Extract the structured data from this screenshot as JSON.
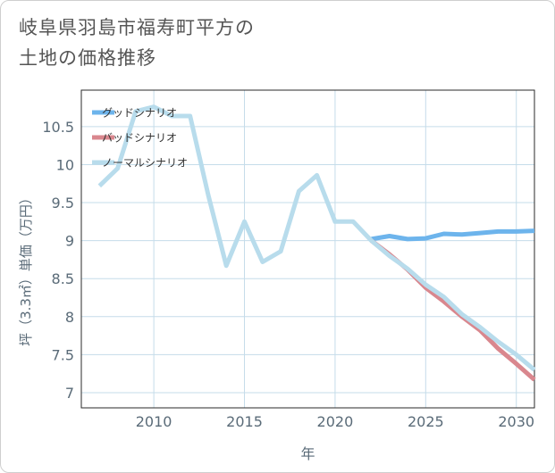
{
  "title_lines": [
    "岐阜県羽島市福寿町平方の",
    "土地の価格推移"
  ],
  "chart_data": {
    "type": "line",
    "xlabel": "年",
    "ylabel": "坪（3.3㎡）単価（万円）",
    "xlim": [
      2006,
      2031
    ],
    "ylim": [
      6.8,
      10.98
    ],
    "xticks": [
      2010,
      2015,
      2020,
      2025,
      2030
    ],
    "yticks": [
      7,
      7.5,
      8,
      8.5,
      9,
      9.5,
      10,
      10.5
    ],
    "ytick_labels": [
      "7",
      "7.5",
      "8",
      "8.5",
      "9",
      "9.5",
      "10",
      "10.5"
    ],
    "grid": true,
    "legend_position": "top-left",
    "series": [
      {
        "name": "グッドシナリオ",
        "color": "#6db4ec",
        "x": [
          2022,
          2023,
          2024,
          2025,
          2026,
          2027,
          2028,
          2029,
          2030,
          2031
        ],
        "y": [
          9.02,
          9.06,
          9.02,
          9.03,
          9.09,
          9.08,
          9.1,
          9.12,
          9.12,
          9.13
        ]
      },
      {
        "name": "バッドシナリオ",
        "color": "#d9878e",
        "x": [
          2022,
          2023,
          2024,
          2025,
          2026,
          2027,
          2028,
          2029,
          2030,
          2031
        ],
        "y": [
          9.0,
          8.82,
          8.62,
          8.38,
          8.2,
          8.0,
          7.82,
          7.58,
          7.38,
          7.17
        ]
      },
      {
        "name": "ノーマルシナリオ",
        "color": "#b8dcec",
        "x": [
          2007,
          2008,
          2009,
          2010,
          2011,
          2012,
          2013,
          2014,
          2015,
          2016,
          2017,
          2018,
          2019,
          2020,
          2021,
          2022,
          2023,
          2024,
          2025,
          2026,
          2027,
          2028,
          2029,
          2030,
          2031
        ],
        "y": [
          9.72,
          9.95,
          10.7,
          10.76,
          10.64,
          10.64,
          9.6,
          8.67,
          9.25,
          8.72,
          8.86,
          9.65,
          9.86,
          9.25,
          9.25,
          9.0,
          8.8,
          8.63,
          8.42,
          8.26,
          8.03,
          7.86,
          7.67,
          7.5,
          7.3
        ]
      }
    ]
  },
  "colors": {
    "grid": "#c5dcea",
    "axis_text": "#5a6b78",
    "title": "#555555"
  }
}
